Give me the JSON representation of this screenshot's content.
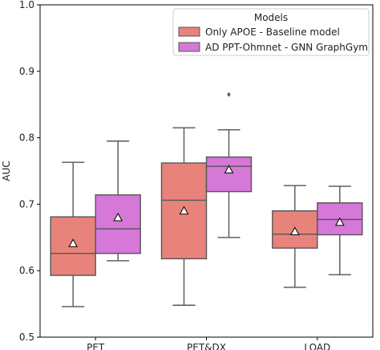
{
  "chart_data": {
    "type": "boxplot",
    "ylabel": "AUC",
    "ylim": [
      0.5,
      1.0
    ],
    "yticks": [
      "0.5",
      "0.6",
      "0.7",
      "0.8",
      "0.9",
      "1.0"
    ],
    "categories": [
      "PET",
      "PET&DX",
      "LOAD"
    ],
    "grid": false,
    "legend": {
      "title": "Models",
      "placement": "top-right"
    },
    "series": [
      {
        "name": "Only APOE - Baseline model",
        "color": "#e8837b",
        "boxes": [
          {
            "category": "PET",
            "whisker_low": 0.546,
            "q1": 0.593,
            "median": 0.626,
            "q3": 0.681,
            "whisker_high": 0.763,
            "mean": 0.641,
            "outliers": []
          },
          {
            "category": "PET&DX",
            "whisker_low": 0.548,
            "q1": 0.618,
            "median": 0.706,
            "q3": 0.762,
            "whisker_high": 0.815,
            "mean": 0.69,
            "outliers": []
          },
          {
            "category": "LOAD",
            "whisker_low": 0.575,
            "q1": 0.634,
            "median": 0.655,
            "q3": 0.69,
            "whisker_high": 0.728,
            "mean": 0.659,
            "outliers": []
          }
        ]
      },
      {
        "name": "AD PPT-Ohmnet - GNN GraphGym",
        "color": "#d578d8",
        "boxes": [
          {
            "category": "PET",
            "whisker_low": 0.615,
            "q1": 0.626,
            "median": 0.663,
            "q3": 0.714,
            "whisker_high": 0.795,
            "mean": 0.68,
            "outliers": []
          },
          {
            "category": "PET&DX",
            "whisker_low": 0.65,
            "q1": 0.719,
            "median": 0.757,
            "q3": 0.771,
            "whisker_high": 0.812,
            "mean": 0.752,
            "outliers": [
              0.865
            ]
          },
          {
            "category": "LOAD",
            "whisker_low": 0.594,
            "q1": 0.654,
            "median": 0.677,
            "q3": 0.702,
            "whisker_high": 0.727,
            "mean": 0.673,
            "outliers": []
          }
        ]
      }
    ]
  },
  "colors": {
    "line": "#555555",
    "mean_fill": "#ffffff",
    "mean_stroke": "#000000"
  }
}
